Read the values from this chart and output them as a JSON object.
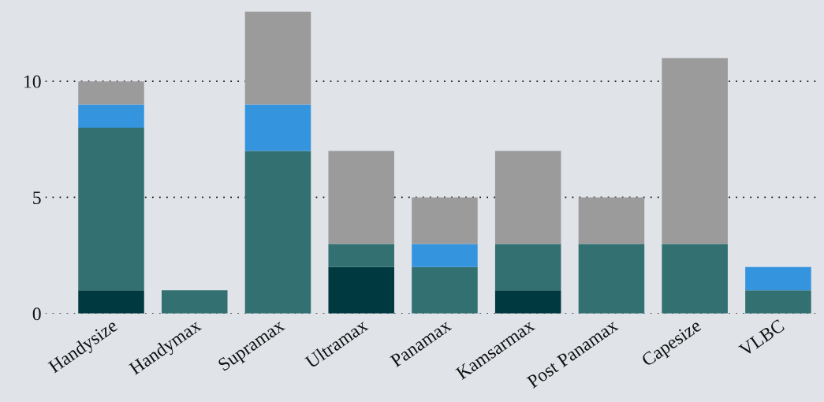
{
  "chart_data": {
    "type": "bar",
    "stacked": true,
    "categories": [
      "Handysize",
      "Handymax",
      "Supramax",
      "Ultramax",
      "Panamax",
      "Kamsarmax",
      "Post Panamax",
      "Capesize",
      "VLBC"
    ],
    "series": [
      {
        "color": "#003a40",
        "values": [
          1,
          0,
          0,
          2,
          0,
          1,
          0,
          0,
          0
        ]
      },
      {
        "color": "#337072",
        "values": [
          7,
          1,
          7,
          1,
          2,
          2,
          3,
          3,
          1
        ]
      },
      {
        "color": "#3594de",
        "values": [
          1,
          0,
          2,
          0,
          1,
          0,
          0,
          0,
          1
        ]
      },
      {
        "color": "#9b9b9b",
        "values": [
          1,
          0,
          4,
          4,
          2,
          4,
          2,
          8,
          0
        ]
      }
    ],
    "ylim": [
      0,
      13.5
    ],
    "yticks": [
      0,
      5,
      10
    ],
    "grid": "y",
    "legend": false
  }
}
